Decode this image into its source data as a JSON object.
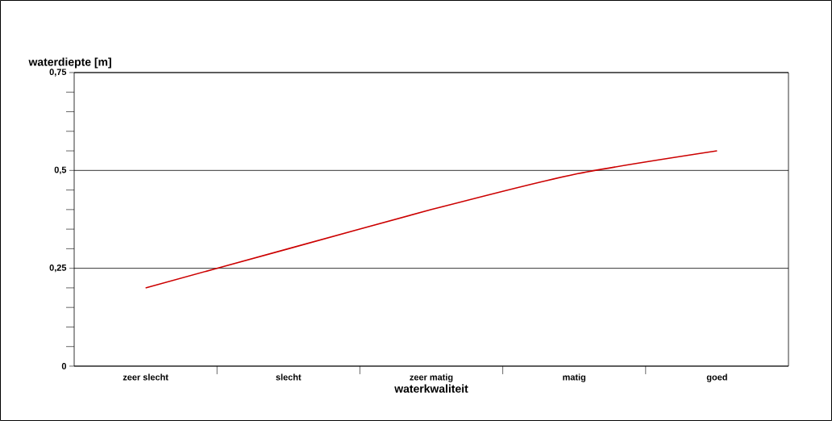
{
  "chart_data": {
    "type": "line",
    "ylabel": "waterdiepte [m]",
    "xlabel": "waterkwaliteit",
    "categories": [
      "zeer slecht",
      "slecht",
      "zeer matig",
      "matig",
      "goed"
    ],
    "series": [
      {
        "color": "#cc0000",
        "values": [
          0.2,
          0.3,
          0.4,
          0.49,
          0.55
        ]
      }
    ],
    "ylim": [
      0,
      0.75
    ],
    "yticks": [
      0,
      {
        "value": 0.25,
        "label": "0,25"
      },
      {
        "value": 0.5,
        "label": "0,5"
      },
      {
        "value": 0.75,
        "label": "0,75"
      }
    ],
    "grid": "y",
    "marker": "none",
    "line_style": "solid"
  }
}
